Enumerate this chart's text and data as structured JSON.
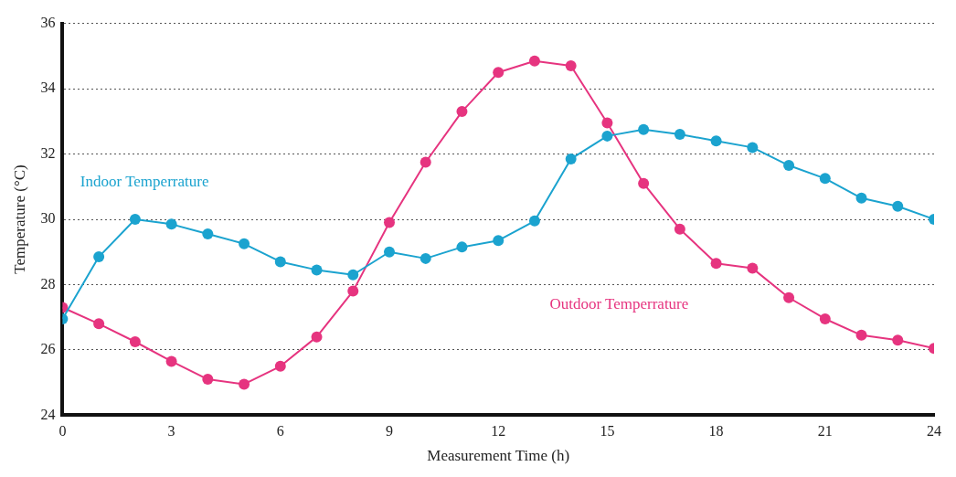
{
  "chart_data": {
    "type": "line",
    "xlabel": "Measurement Time (h)",
    "ylabel": "Temperature (°C)",
    "x": [
      0,
      1,
      2,
      3,
      4,
      5,
      6,
      7,
      8,
      9,
      10,
      11,
      12,
      13,
      14,
      15,
      16,
      17,
      18,
      19,
      20,
      21,
      22,
      23,
      24
    ],
    "series": [
      {
        "name": "Indoor Temperrature",
        "color": "#1ba3cf",
        "values": [
          26.95,
          28.85,
          30.0,
          29.85,
          29.55,
          29.25,
          28.7,
          28.45,
          28.3,
          29.0,
          28.8,
          29.15,
          29.35,
          29.95,
          31.85,
          32.55,
          32.75,
          32.6,
          32.4,
          32.2,
          31.65,
          31.25,
          30.65,
          30.4,
          30.0
        ]
      },
      {
        "name": "Outdoor Temperrature",
        "color": "#e6347f",
        "values": [
          27.3,
          26.8,
          26.25,
          25.65,
          25.1,
          24.95,
          25.5,
          26.4,
          27.8,
          29.9,
          31.75,
          33.3,
          34.5,
          34.85,
          34.7,
          32.95,
          31.1,
          29.7,
          28.65,
          28.5,
          27.6,
          26.95,
          26.45,
          26.3,
          26.05
        ]
      }
    ],
    "xlim": [
      0,
      24
    ],
    "xticks": [
      0,
      3,
      6,
      9,
      12,
      15,
      18,
      21,
      24
    ],
    "ylim": [
      24,
      36
    ],
    "yticks": [
      24,
      26,
      28,
      30,
      32,
      34,
      36
    ],
    "grid": "y",
    "legend": false,
    "marker": "circle",
    "line_style": "solid"
  }
}
